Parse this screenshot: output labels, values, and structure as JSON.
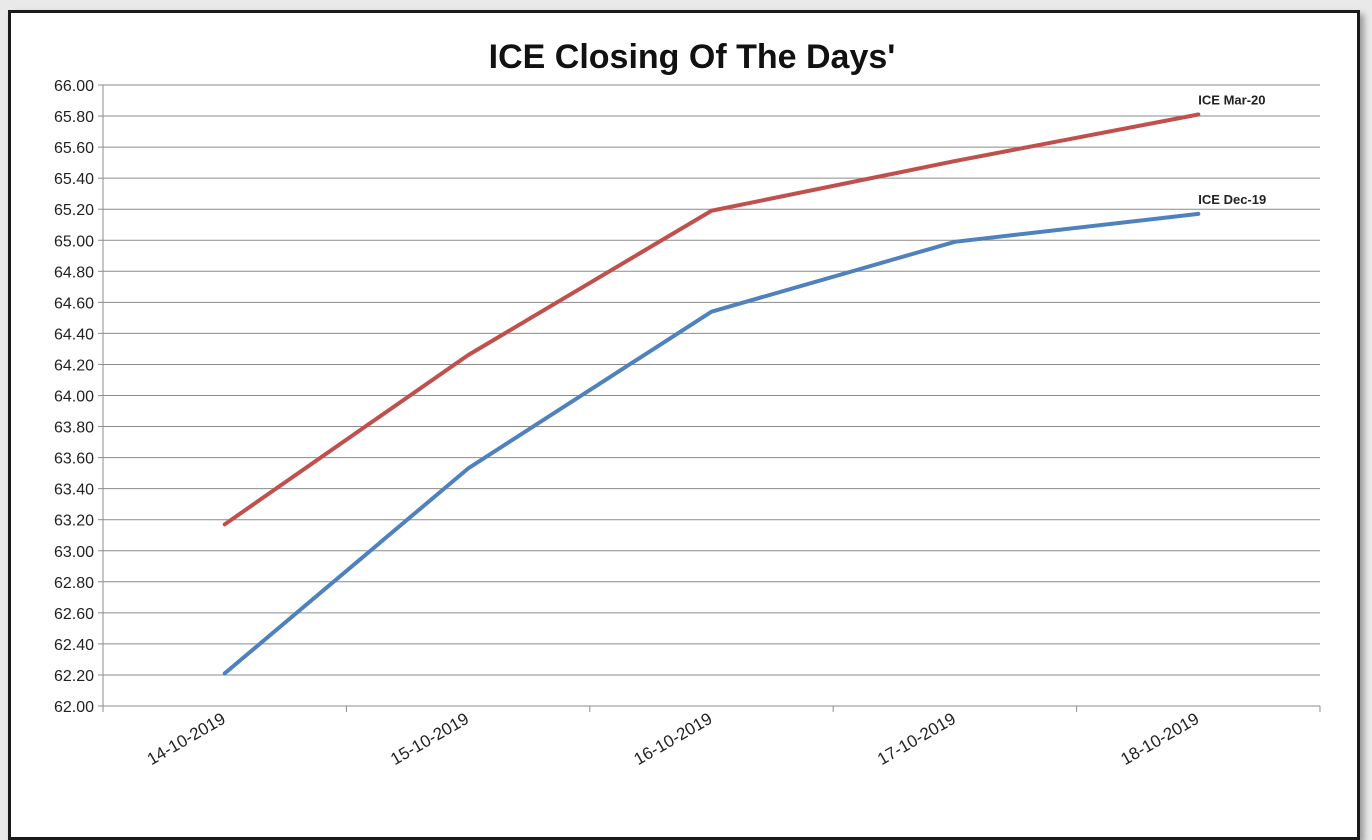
{
  "chart_data": {
    "type": "line",
    "title": "ICE Closing Of The Days'",
    "xlabel": "",
    "ylabel": "",
    "categories": [
      "14-10-2019",
      "15-10-2019",
      "16-10-2019",
      "17-10-2019",
      "18-10-2019"
    ],
    "ylim": [
      62.0,
      66.0
    ],
    "ytick_step": 0.2,
    "ytick_decimals": 2,
    "grid": true,
    "legend": "none",
    "series": [
      {
        "name": "ICE Mar-20",
        "color": "#c0504d",
        "values": [
          63.17,
          64.26,
          65.19,
          65.51,
          65.81
        ]
      },
      {
        "name": "ICE Dec-19",
        "color": "#4f81bd",
        "values": [
          62.21,
          63.53,
          64.54,
          64.99,
          65.17
        ]
      }
    ]
  }
}
